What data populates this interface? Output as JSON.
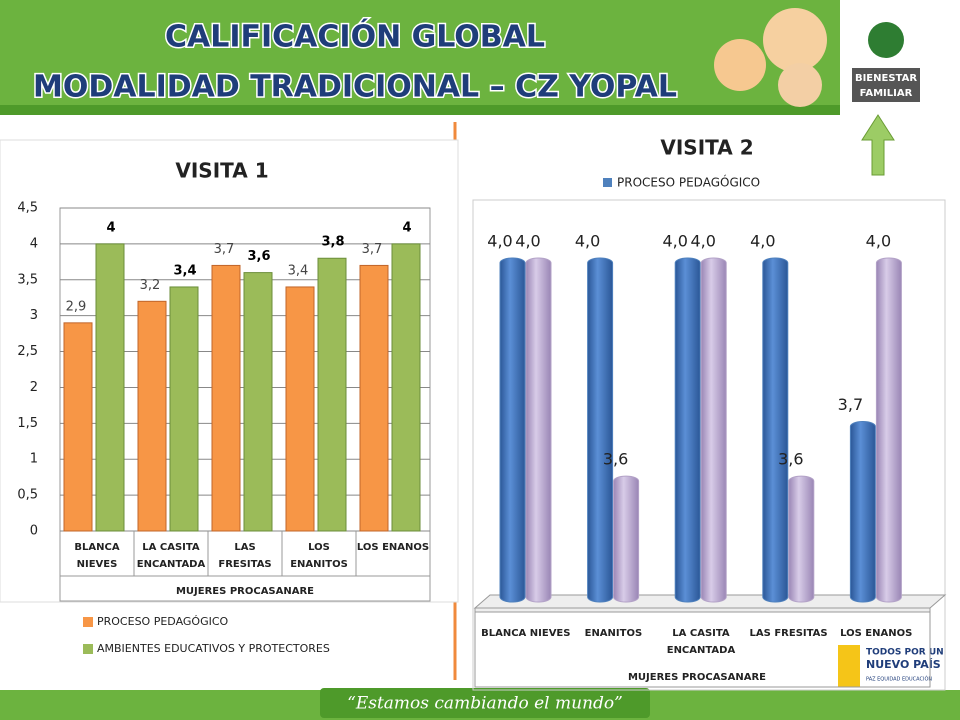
{
  "slide": {
    "title": [
      "CALIFICACIÓN GLOBAL",
      "MODALIDAD TRADICIONAL – CZ YOPAL"
    ],
    "logo": [
      "BIENESTAR",
      "FAMILIAR"
    ],
    "logo2": [
      "TODOS POR UN",
      "NUEVO PAÍS",
      "PAZ EQUIDAD EDUCACIÓN"
    ],
    "slogan": "“Estamos cambiando el mundo”"
  },
  "chart_data": [
    {
      "type": "bar",
      "title": "VISITA 1",
      "x_label": "MUJERES PROCASANARE",
      "categories": [
        "BLANCA NIEVES",
        "LA CASITA ENCANTADA",
        "LAS FRESITAS",
        "LOS ENANITOS",
        "LOS ENANOS"
      ],
      "series": [
        {
          "name": "PROCESO PEDAGÓGICO",
          "color": "#f79646",
          "values": [
            2.9,
            3.2,
            3.7,
            3.4,
            3.7
          ],
          "value_labels": [
            "2,9",
            "3,2",
            "3,7",
            "3,4",
            "3,7"
          ]
        },
        {
          "name": "AMBIENTES EDUCATIVOS Y PROTECTORES",
          "color": "#9bbb59",
          "values": [
            4,
            3.4,
            3.6,
            3.8,
            4
          ],
          "value_labels": [
            "4",
            "3,4",
            "3,6",
            "3,8",
            "4"
          ]
        }
      ],
      "ylim": [
        0,
        4.5
      ],
      "yticks": [
        0,
        {
          "value": 0.5,
          "label": "0,5"
        },
        1,
        {
          "value": 1.5,
          "label": "1,5"
        },
        2,
        {
          "value": 2.5,
          "label": "2,5"
        },
        3,
        {
          "value": 3.5,
          "label": "3,5"
        },
        4,
        {
          "value": 4.5,
          "label": "4,5"
        }
      ],
      "grid": true,
      "legend": "bottom"
    },
    {
      "type": "cylinder",
      "title": "VISITA 2",
      "x_label": "MUJERES PROCASANARE",
      "categories": [
        "BLANCA NIEVES",
        "ENANITOS",
        "LA CASITA ENCANTADA",
        "LAS FRESITAS",
        "LOS ENANOS"
      ],
      "series": [
        {
          "name": "PROCESO PEDAGÓGICO",
          "color": "#4f81bd",
          "values": [
            4.0,
            4.0,
            4.0,
            4.0,
            3.7
          ],
          "value_labels": [
            "4,0",
            "4,0",
            "4,0",
            "4,0",
            "3,7"
          ]
        },
        {
          "color": "#b3a2c7",
          "values": [
            4.0,
            3.6,
            4.0,
            3.6,
            4.0
          ],
          "value_labels": [
            "4,0",
            "3,6",
            "4,0",
            "3,6",
            "4,0"
          ]
        }
      ],
      "ylim": [
        3.38,
        4.0
      ],
      "legend": "top"
    }
  ]
}
